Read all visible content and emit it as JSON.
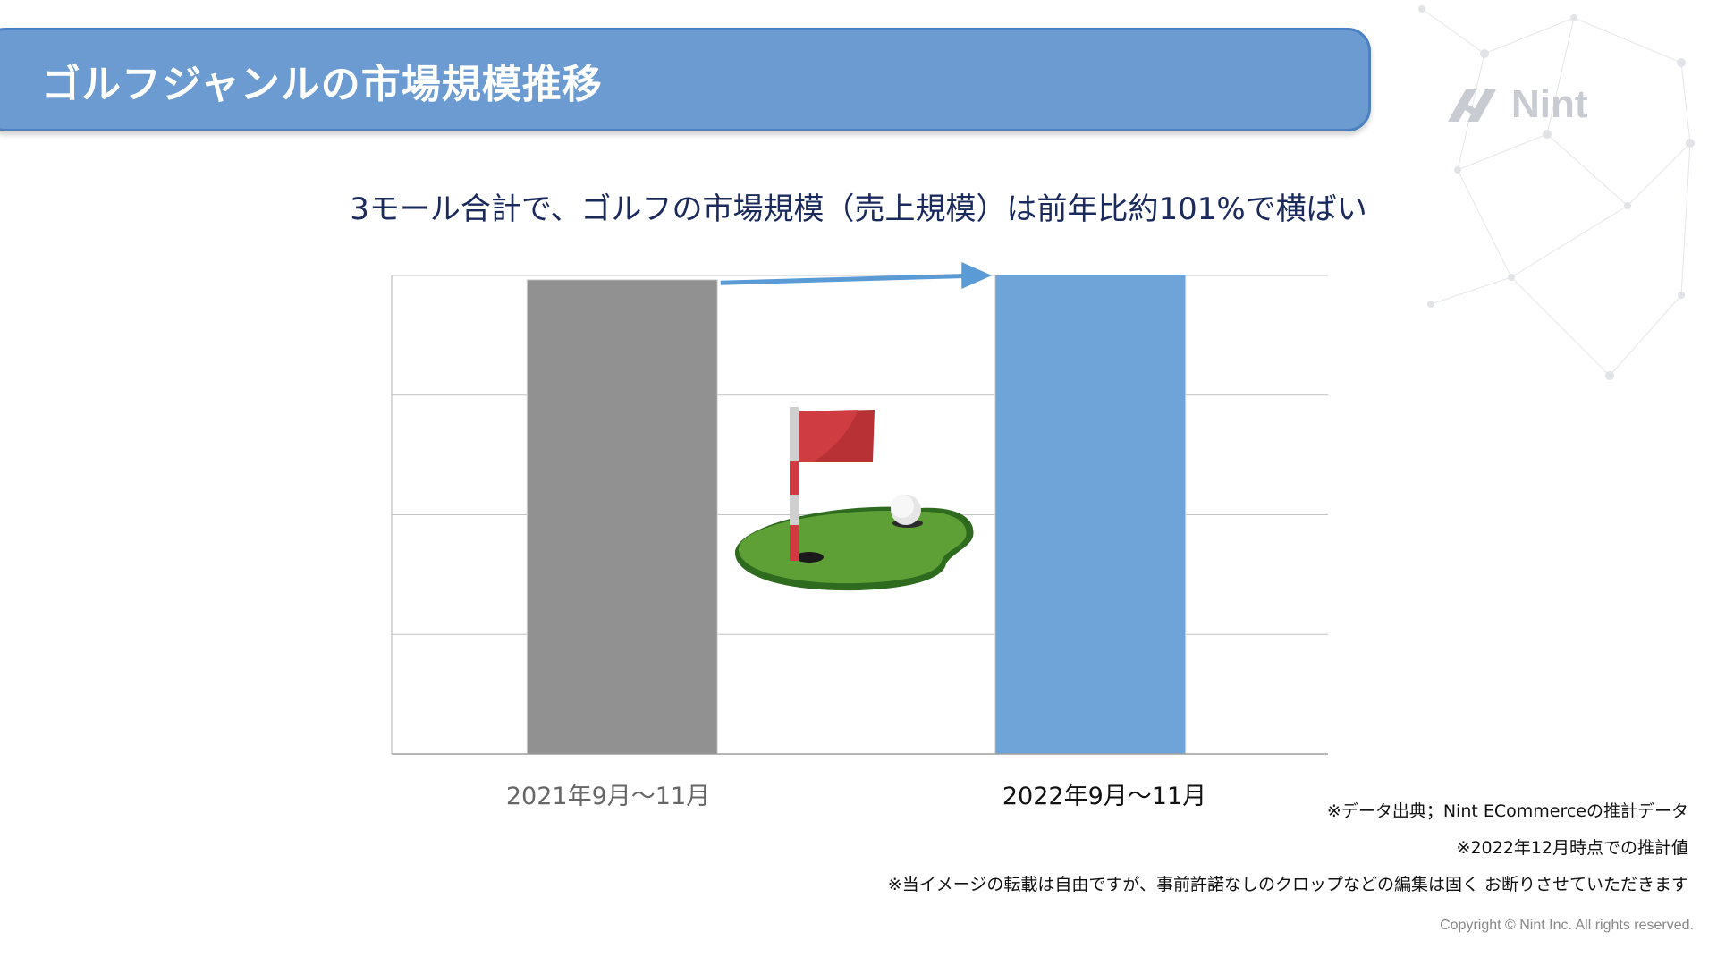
{
  "slide": {
    "title": "ゴルフジャンルの市場規模推移",
    "headline": "3モール合計で、ゴルフの市場規模（売上規模）は前年比約101%で横ばい",
    "logo_text": "Nint",
    "notes": [
      "※データ出典；Nint ECommerceの推計データ",
      "※2022年12月時点での推計値",
      "※当イメージの転載は自由ですが、事前許諾なしのクロップなどの編集は固く お断りさせていただきます"
    ],
    "copyright": "Copyright © Nint Inc. All rights reserved."
  },
  "colors": {
    "title_bar": "#6b9bd1",
    "bar_2021": "#919191",
    "bar_2022": "#6fa4d8",
    "arrow": "#5b9bd5",
    "headline": "#1a2a5c"
  },
  "icons": [
    "golf-flag-icon",
    "nint-logo-icon"
  ],
  "chart_data": {
    "type": "bar",
    "categories": [
      "2021年9月〜11月",
      "2022年9月〜11月"
    ],
    "values": [
      100,
      101
    ],
    "ylim": [
      0,
      101
    ],
    "grid": true,
    "y_tick_labels_shown": false,
    "annotation": "arrow from 2021 bar to 2022 bar"
  }
}
